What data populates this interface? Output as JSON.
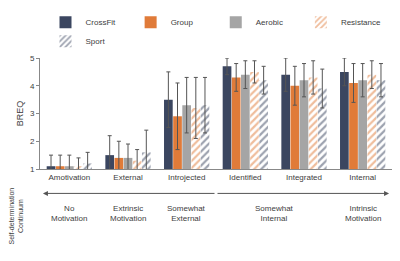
{
  "chart_data": {
    "type": "bar",
    "y_label": "BREQ",
    "categories": [
      "Amotivation",
      "External",
      "Introjected",
      "Identified",
      "Integrated",
      "Internal"
    ],
    "series": [
      {
        "name": "CrossFit",
        "color": "#3b4660",
        "marker": "solid",
        "values": [
          1.1,
          1.5,
          3.5,
          4.7,
          4.4,
          4.5
        ],
        "errors": [
          0.4,
          0.7,
          1.0,
          0.3,
          0.6,
          0.5
        ]
      },
      {
        "name": "Group",
        "color": "#e07b39",
        "marker": "solid",
        "values": [
          1.1,
          1.4,
          2.9,
          4.3,
          4.0,
          4.1
        ],
        "errors": [
          0.4,
          0.6,
          1.2,
          0.5,
          0.7,
          0.7
        ]
      },
      {
        "name": "Aerobic",
        "color": "#a5a5a5",
        "marker": "solid",
        "values": [
          1.1,
          1.4,
          3.3,
          4.4,
          4.2,
          4.2
        ],
        "errors": [
          0.4,
          0.5,
          1.0,
          0.5,
          0.6,
          0.6
        ]
      },
      {
        "name": "Resistance",
        "color": "#e07b39",
        "marker": "hatched",
        "values": [
          1.1,
          1.3,
          3.2,
          4.5,
          4.3,
          4.4
        ],
        "errors": [
          0.3,
          0.4,
          1.1,
          0.4,
          0.6,
          0.5
        ]
      },
      {
        "name": "Sport",
        "color": "#3b4660",
        "marker": "hatched",
        "values": [
          1.2,
          1.6,
          3.3,
          4.2,
          3.9,
          4.2
        ],
        "errors": [
          0.4,
          0.8,
          1.0,
          0.5,
          0.7,
          0.6
        ]
      }
    ],
    "ylim": [
      1,
      5
    ],
    "yticks": [
      1,
      2,
      3,
      4,
      5
    ],
    "grid": false,
    "legend": "top",
    "annotations": [
      "Self-determination Continuum",
      "No Motivation",
      "Extrinsic Motivation",
      "Somewhat External",
      "Somewhat Internal",
      "Intrinsic Motivation"
    ]
  }
}
